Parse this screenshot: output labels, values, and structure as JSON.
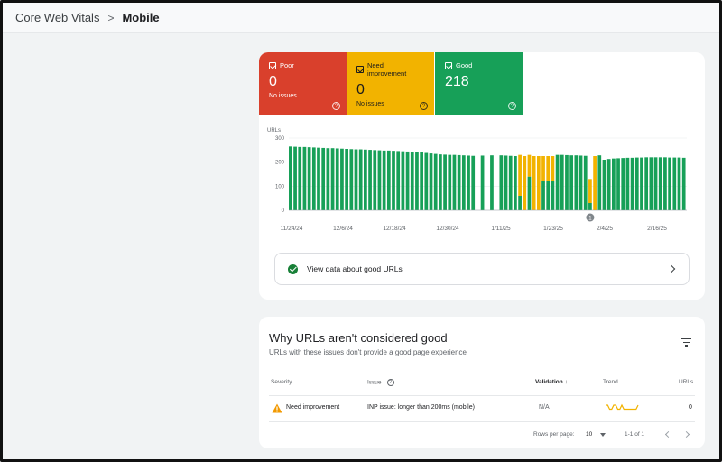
{
  "breadcrumb": {
    "parent": "Core Web Vitals",
    "separator": ">",
    "current": "Mobile"
  },
  "tiles": [
    {
      "label": "Poor",
      "value": "0",
      "sub": "No issues",
      "color": "#d9402c"
    },
    {
      "label": "Need improvement",
      "value": "0",
      "sub": "No issues",
      "color": "#f2b300"
    },
    {
      "label": "Good",
      "value": "218",
      "sub": "",
      "color": "#17a058"
    }
  ],
  "chart_data": {
    "type": "bar",
    "stacked": true,
    "ylabel": "URLs",
    "ylim": [
      0,
      300
    ],
    "yticks": [
      "300",
      "200",
      "100",
      "0"
    ],
    "xtick_labels": [
      "11/24/24",
      "12/6/24",
      "12/18/24",
      "12/30/24",
      "1/11/25",
      "1/23/25",
      "2/4/25",
      "2/16/25"
    ],
    "annotation": "1",
    "series": [
      {
        "color": "#17a058",
        "values": [
          265,
          264,
          263,
          263,
          262,
          261,
          260,
          259,
          258,
          258,
          257,
          256,
          255,
          254,
          253,
          253,
          252,
          251,
          250,
          249,
          248,
          248,
          247,
          246,
          245,
          244,
          243,
          242,
          240,
          238,
          236,
          234,
          232,
          231,
          230,
          230,
          229,
          228,
          227,
          226,
          0,
          227,
          0,
          228,
          0,
          228,
          227,
          226,
          225,
          60,
          0,
          140,
          0,
          0,
          120,
          120,
          120,
          230,
          230,
          229,
          228,
          228,
          227,
          226,
          30,
          0,
          228,
          210,
          213,
          215,
          216,
          217,
          218,
          218,
          219,
          219,
          220,
          220,
          220,
          220,
          220,
          219,
          219,
          219,
          218
        ]
      },
      {
        "color": "#f2b300",
        "values": [
          0,
          0,
          0,
          0,
          0,
          0,
          0,
          0,
          0,
          0,
          0,
          0,
          0,
          0,
          0,
          0,
          0,
          0,
          0,
          0,
          0,
          0,
          0,
          0,
          0,
          0,
          0,
          0,
          0,
          0,
          0,
          0,
          0,
          0,
          0,
          0,
          0,
          0,
          0,
          0,
          0,
          0,
          0,
          0,
          0,
          0,
          0,
          0,
          0,
          170,
          225,
          90,
          225,
          225,
          105,
          105,
          105,
          0,
          0,
          0,
          0,
          0,
          0,
          0,
          100,
          225,
          0,
          0,
          0,
          0,
          0,
          0,
          0,
          0,
          0,
          0,
          0,
          0,
          0,
          0,
          0,
          0,
          0,
          0,
          0
        ]
      }
    ]
  },
  "good_link": {
    "label": "View data about good URLs"
  },
  "table": {
    "title": "Why URLs aren't considered good",
    "subtitle": "URLs with these issues don't provide a good page experience",
    "headers": {
      "severity": "Severity",
      "issue": "Issue",
      "validation": "Validation",
      "trend": "Trend",
      "urls": "URLs"
    },
    "rows": [
      {
        "severity": "Need improvement",
        "issue": "INP issue: longer than 200ms (mobile)",
        "validation": "N/A",
        "urls": "0"
      }
    ],
    "trend_values": [
      0,
      0,
      3,
      3,
      0,
      0,
      3,
      3,
      0,
      3,
      3,
      3,
      3,
      3,
      3,
      3,
      0
    ]
  },
  "pagination": {
    "rows_label": "Rows per page:",
    "rows_value": "10",
    "range": "1-1 of 1"
  }
}
